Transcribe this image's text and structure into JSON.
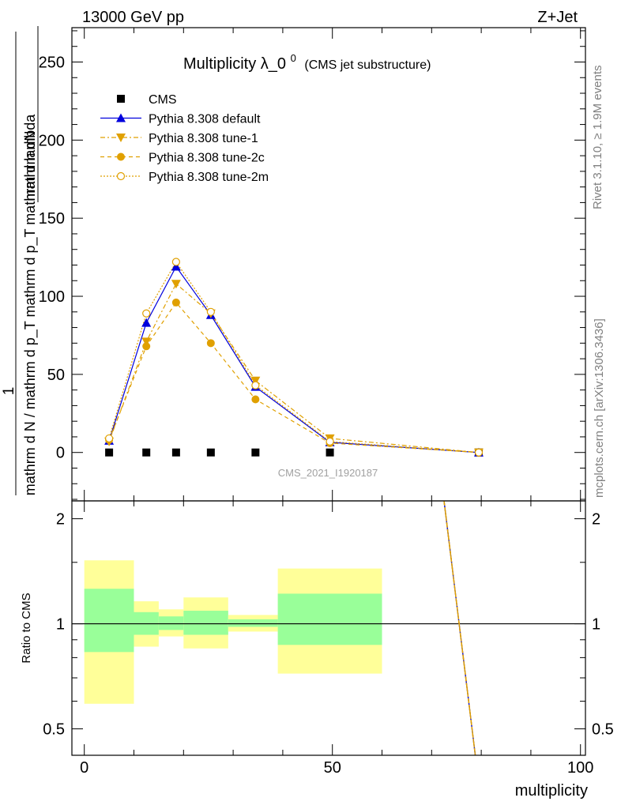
{
  "header": {
    "left": "13000 GeV pp",
    "right": "Z+Jet"
  },
  "side_labels": {
    "rivet": "Rivet 3.1.10, ≥ 1.9M events",
    "mcplots": "mcplots.cern.ch [arXiv:1306.3436]"
  },
  "colors": {
    "cms": "#000000",
    "default": "#0000dd",
    "tune": "#e0a000",
    "band_inner": "#99ff99",
    "band_outer": "#ffff99"
  },
  "chart_data": [
    {
      "type": "line",
      "title": "Multiplicity λ_0⁰",
      "title_main": "Multiplicity λ_0",
      "title_sup": "0",
      "subtitle": "(CMS jet substructure)",
      "ylabel_numerator": "mathrm dN",
      "ylabel_denominator": "mathrm d N / mathrm d p_T mathrm d p_T mathrm d lambda",
      "ylabel_one": "1",
      "watermark": "CMS_2021_I1920187",
      "xlim": [
        -2.5,
        101
      ],
      "ylim": [
        -31,
        272
      ],
      "yticks": [
        0,
        50,
        100,
        150,
        200,
        250
      ],
      "ytick_labels": [
        "0",
        "50",
        "100",
        "150",
        "200",
        "250"
      ],
      "legend_position": "top-left",
      "series": [
        {
          "name": "CMS",
          "marker": "square",
          "x": [
            5,
            12.5,
            18.5,
            25.5,
            34.5,
            49.5,
            79.5
          ],
          "y": [
            0,
            0,
            0,
            0,
            0,
            0,
            0
          ]
        },
        {
          "name": "Pythia 8.308 default",
          "marker": "triangle-up",
          "line": "solid",
          "x": [
            5,
            12.5,
            18.5,
            25.5,
            34.5,
            49.5,
            79.5
          ],
          "y": [
            7.5,
            83,
            119,
            88,
            42,
            6.5,
            0
          ]
        },
        {
          "name": "Pythia 8.308 tune-1",
          "marker": "triangle-down",
          "line": "dashdot",
          "x": [
            5,
            12.5,
            18.5,
            25.5,
            34.5,
            49.5,
            79.5
          ],
          "y": [
            7,
            71,
            108,
            89,
            46,
            9,
            0
          ]
        },
        {
          "name": "Pythia 8.308 tune-2c",
          "marker": "circle-filled",
          "line": "dashed",
          "x": [
            5,
            12.5,
            18.5,
            25.5,
            34.5,
            49.5,
            79.5
          ],
          "y": [
            8,
            68,
            96,
            70,
            34,
            6,
            0
          ]
        },
        {
          "name": "Pythia 8.308 tune-2m",
          "marker": "circle-open",
          "line": "dotted",
          "x": [
            5,
            12.5,
            18.5,
            25.5,
            34.5,
            49.5,
            79.5
          ],
          "y": [
            9,
            89,
            122,
            90,
            43,
            7,
            0
          ]
        }
      ]
    },
    {
      "type": "line",
      "ylabel": "Ratio to CMS",
      "xlabel": "multiplicity",
      "xlim": [
        -2.5,
        101
      ],
      "ylim": [
        0.42,
        2.25
      ],
      "log_y": true,
      "xticks": [
        0,
        50,
        100
      ],
      "xtick_labels": [
        "0",
        "50",
        "100"
      ],
      "yticks": [
        0.5,
        1,
        2
      ],
      "ytick_labels": [
        "0.5",
        "1",
        "2"
      ],
      "reference_line": 1,
      "bands": [
        {
          "x": [
            0,
            10
          ],
          "inner": [
            0.83,
            1.26
          ],
          "outer": [
            0.59,
            1.52
          ]
        },
        {
          "x": [
            10,
            15
          ],
          "inner": [
            0.93,
            1.08
          ],
          "outer": [
            0.86,
            1.16
          ]
        },
        {
          "x": [
            15,
            20
          ],
          "inner": [
            0.96,
            1.05
          ],
          "outer": [
            0.92,
            1.1
          ]
        },
        {
          "x": [
            20,
            29
          ],
          "inner": [
            0.93,
            1.09
          ],
          "outer": [
            0.85,
            1.19
          ]
        },
        {
          "x": [
            29,
            39
          ],
          "inner": [
            0.98,
            1.03
          ],
          "outer": [
            0.95,
            1.06
          ]
        },
        {
          "x": [
            39,
            60
          ],
          "inner": [
            0.87,
            1.22
          ],
          "outer": [
            0.72,
            1.44
          ]
        }
      ],
      "series": [
        {
          "name": "Pythia 8.308 default",
          "x": [
            72.5,
            78.8
          ],
          "y": [
            2.25,
            0.42
          ]
        },
        {
          "name": "Pythia 8.308 tune-1",
          "x": [
            72.5,
            78.8
          ],
          "y": [
            2.25,
            0.42
          ]
        },
        {
          "name": "Pythia 8.308 tune-2c",
          "x": [
            72.5,
            78.8
          ],
          "y": [
            2.25,
            0.42
          ]
        },
        {
          "name": "Pythia 8.308 tune-2m",
          "x": [
            72.5,
            78.8
          ],
          "y": [
            2.25,
            0.42
          ]
        }
      ]
    }
  ]
}
